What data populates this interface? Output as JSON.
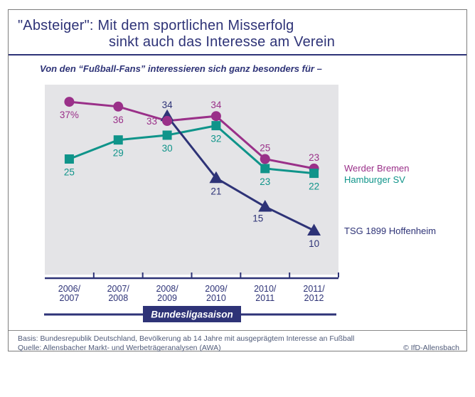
{
  "figure": {
    "title_line1": "\"Absteiger\": Mit dem sportlichen Misserfolg",
    "title_line2": "sinkt auch das Interesse am Verein",
    "subtitle": "Von den “Fußball-Fans” interessieren sich ganz besonders für –",
    "footer_basis": "Basis: Bundesrepublik Deutschland, Bevölkerung ab 14 Jahre mit ausgeprägtem Interesse an Fußball",
    "footer_quelle": "Quelle: Allensbacher Markt- und Werbeträgeranalysen (AWA)",
    "copyright": "© IfD-Allensbach"
  },
  "colors": {
    "navy": "#2e3377",
    "purple": "#9a3089",
    "teal": "#0f948a",
    "plot_bg": "#e4e4e7",
    "footer_text": "#4f5a78",
    "rule_gray": "#8a8a8a",
    "box_text": "#ffffff"
  },
  "chart_data": {
    "type": "line",
    "title": "\"Absteiger\": Mit dem sportlichen Misserfolg sinkt auch das Interesse am Verein",
    "subtitle": "Von den “Fußball-Fans” interessieren sich ganz besonders für –",
    "xlabel": "Bundesligasaison",
    "ylabel": "",
    "unit": "percent of football fans",
    "ylim": [
      0,
      40
    ],
    "grid": false,
    "legend_position": "right",
    "categories": [
      "2006/2007",
      "2007/2008",
      "2008/2009",
      "2009/2010",
      "2010/2011",
      "2011/2012"
    ],
    "series": [
      {
        "name": "Werder Bremen",
        "marker": "circle",
        "color": "#9a3089",
        "x_indices": [
          0,
          1,
          2,
          3,
          4,
          5
        ],
        "values": [
          37,
          36,
          33,
          34,
          25,
          23
        ],
        "point_labels": [
          "37%",
          "36",
          "33",
          "34",
          "25",
          "23"
        ],
        "label_positions": [
          "below",
          "below",
          "left",
          "above",
          "above",
          "above"
        ]
      },
      {
        "name": "Hamburger SV",
        "marker": "square",
        "color": "#0f948a",
        "x_indices": [
          0,
          1,
          2,
          3,
          4,
          5
        ],
        "values": [
          25,
          29,
          30,
          32,
          23,
          22
        ],
        "point_labels": [
          "25",
          "29",
          "30",
          "32",
          "23",
          "22"
        ],
        "label_positions": [
          "below",
          "below",
          "below",
          "below",
          "below",
          "below"
        ]
      },
      {
        "name": "TSG 1899 Hoffenheim",
        "marker": "triangle",
        "color": "#2e3377",
        "x_indices": [
          2,
          3,
          4,
          5
        ],
        "values": [
          34,
          21,
          15,
          10
        ],
        "point_labels": [
          "34",
          "21",
          "15",
          "10"
        ],
        "label_positions": [
          "above",
          "below",
          "below-left",
          "below"
        ]
      }
    ]
  }
}
